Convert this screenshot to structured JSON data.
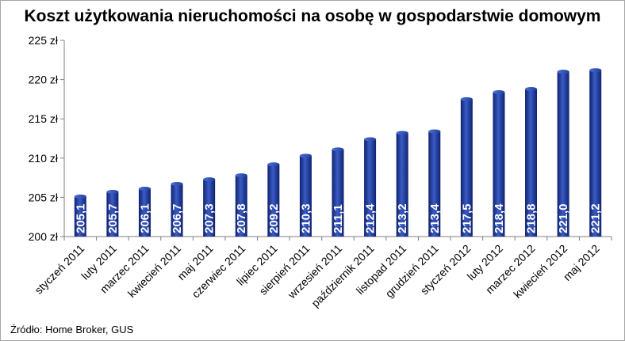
{
  "title": "Koszt użytkowania nieruchomości na osobę w gospodarstwie domowym",
  "source": "Źródło: Home Broker, GUS",
  "colors": {
    "bar": "#1f3a93",
    "bar_dark": "#0f2270",
    "bar_light": "#3a5bc4"
  },
  "chart_data": {
    "type": "bar",
    "title": "Koszt użytkowania nieruchomości na osobę w gospodarstwie domowym",
    "categories": [
      "styczeń 2011",
      "luty 2011",
      "marzec 2011",
      "kwiecień 2011",
      "maj 2011",
      "czerwiec 2011",
      "lipiec 2011",
      "sierpień 2011",
      "wrzesień 2011",
      "październik 2011",
      "listopad 2011",
      "grudzień 2011",
      "styczeń 2012",
      "luty 2012",
      "marzec 2012",
      "kwiecień 2012",
      "maj 2012"
    ],
    "values": [
      205.1,
      205.7,
      206.1,
      206.7,
      207.3,
      207.8,
      209.2,
      210.3,
      211.1,
      212.4,
      213.2,
      213.4,
      217.5,
      218.4,
      218.8,
      221.0,
      221.2
    ],
    "value_labels": [
      "205,1",
      "205,7",
      "206,1",
      "206,7",
      "207,3",
      "207,8",
      "209,2",
      "210,3",
      "211,1",
      "212,4",
      "213,2",
      "213,4",
      "217,5",
      "218,4",
      "218,8",
      "221,0",
      "221,2"
    ],
    "ylim": [
      200,
      225
    ],
    "yticks": [
      200,
      205,
      210,
      215,
      220,
      225
    ],
    "ytick_labels": [
      "200 zł",
      "205 zł",
      "210 zł",
      "215 zł",
      "220 zł",
      "225 zł"
    ],
    "xlabel": "",
    "ylabel": "",
    "grid": false,
    "legend": "none"
  }
}
